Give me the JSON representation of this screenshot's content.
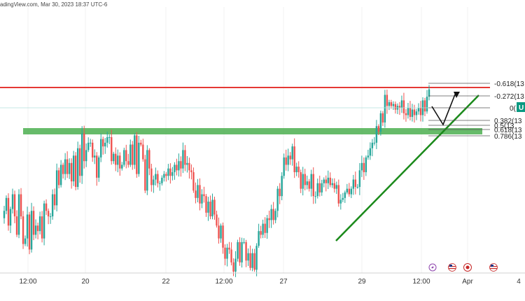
{
  "header": {
    "text": "adingView.com, Mar 30, 2023 18:37 UTC-6"
  },
  "price_badge": {
    "text": "U",
    "color": "#089981"
  },
  "chart_data": {
    "type": "candlestick",
    "title": "",
    "x_tick_labels": [
      "12:00",
      "20",
      "22",
      "12:00",
      "27",
      "29",
      "12:00",
      "Apr",
      "4"
    ],
    "fib_levels": [
      "-0.618(13",
      "-0.272(13",
      "0(",
      "0.382(13",
      "0.5(13",
      "0.618(13",
      "0.786(13"
    ],
    "price_path": [
      0.29,
      0.33,
      0.4,
      0.25,
      0.34,
      0.42,
      0.3,
      0.2,
      0.42,
      0.3,
      0.15,
      0.18,
      0.31,
      0.12,
      0.33,
      0.2,
      0.25,
      0.22,
      0.3,
      0.18,
      0.37,
      0.33,
      0.3,
      0.3,
      0.42,
      0.36,
      0.55,
      0.47,
      0.58,
      0.53,
      0.61,
      0.53,
      0.59,
      0.49,
      0.63,
      0.46,
      0.67,
      0.52,
      0.75,
      0.6,
      0.66,
      0.7,
      0.7,
      0.62,
      0.63,
      0.51,
      0.62,
      0.72,
      0.68,
      0.7,
      0.73,
      0.73,
      0.6,
      0.64,
      0.58,
      0.63,
      0.56,
      0.58,
      0.66,
      0.6,
      0.58,
      0.69,
      0.58,
      0.74,
      0.53,
      0.7,
      0.69,
      0.61,
      0.44,
      0.66,
      0.56,
      0.47,
      0.5,
      0.53,
      0.48,
      0.48,
      0.51,
      0.53,
      0.52,
      0.56,
      0.52,
      0.54,
      0.58,
      0.55,
      0.6,
      0.56,
      0.66,
      0.58,
      0.59,
      0.55,
      0.54,
      0.44,
      0.4,
      0.47,
      0.37,
      0.42,
      0.41,
      0.32,
      0.38,
      0.3,
      0.39,
      0.31,
      0.25,
      0.18,
      0.25,
      0.13,
      0.07,
      0.13,
      0.12,
      0.05,
      0.0,
      0.07,
      0.16,
      0.05,
      0.16,
      0.16,
      0.06,
      0.1,
      0.02,
      0.1,
      0.01,
      0.14,
      0.22,
      0.2,
      0.26,
      0.21,
      0.29,
      0.28,
      0.34,
      0.28,
      0.33,
      0.45,
      0.41,
      0.52,
      0.62,
      0.58,
      0.63,
      0.61,
      0.68,
      0.54,
      0.57,
      0.54,
      0.45,
      0.53,
      0.47,
      0.49,
      0.45,
      0.53,
      0.41,
      0.41,
      0.48,
      0.43,
      0.48,
      0.5,
      0.48,
      0.51,
      0.47,
      0.48,
      0.45,
      0.47,
      0.37,
      0.39,
      0.4,
      0.43,
      0.45,
      0.42,
      0.45,
      0.5,
      0.46,
      0.46,
      0.55,
      0.59,
      0.54,
      0.62,
      0.63,
      0.67,
      0.7,
      0.7,
      0.79,
      0.76,
      0.86,
      0.81,
      0.96,
      0.9,
      0.92,
      0.9,
      0.91,
      0.88,
      0.9,
      0.89,
      0.93,
      0.86,
      0.85,
      0.89,
      0.84,
      0.88,
      0.85,
      0.87,
      0.89,
      0.85,
      0.93,
      0.87,
      0.95,
      0.99
    ],
    "annotations": {
      "resistance_line_color": "#e53935",
      "support_zone_color": "#4caf50",
      "trendline_color": "#1b8a1b",
      "projection": "pullback to 0.618 then up"
    },
    "colors": {
      "up": "#26a69a",
      "down": "#ef5350"
    },
    "event_icons": [
      "lightning-icon",
      "us-flag-icon",
      "red-circle-icon",
      "us-flag-icon"
    ]
  }
}
